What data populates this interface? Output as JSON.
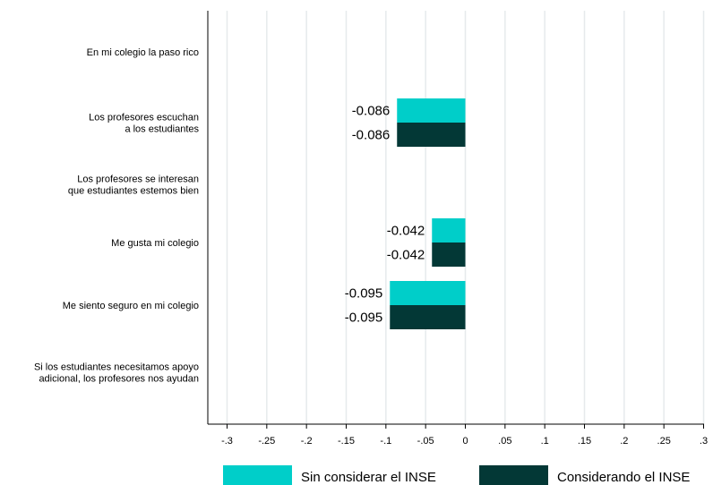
{
  "chart_data": {
    "type": "bar",
    "orientation": "horizontal",
    "categories": [
      [
        "En mi colegio la paso rico"
      ],
      [
        "Los profesores escuchan",
        "a los estudiantes"
      ],
      [
        "Los profesores se interesan",
        "que estudiantes estemos bien"
      ],
      [
        "Me gusta mi colegio"
      ],
      [
        "Me siento seguro en mi colegio"
      ],
      [
        "Si los estudiantes necesitamos apoyo",
        "adicional, los profesores nos ayudan"
      ]
    ],
    "series": [
      {
        "name": "Sin considerar el INSE",
        "color": "#00cec9",
        "values": [
          null,
          -0.086,
          null,
          -0.042,
          -0.095,
          null
        ],
        "labels": [
          null,
          "-0.086",
          null,
          "-0.042",
          "-0.095",
          null
        ]
      },
      {
        "name": "Considerando el INSE",
        "color": "#033836",
        "values": [
          null,
          -0.086,
          null,
          -0.042,
          -0.095,
          null
        ],
        "labels": [
          null,
          "-0.086",
          null,
          "-0.042",
          "-0.095",
          null
        ]
      }
    ],
    "xlim": [
      -0.3,
      0.3
    ],
    "xticks": [
      -0.3,
      -0.25,
      -0.2,
      -0.15,
      -0.1,
      -0.05,
      0,
      0.05,
      0.1,
      0.15,
      0.2,
      0.25,
      0.3
    ],
    "xtick_labels": [
      "-.3",
      "-.25",
      "-.2",
      "-.15",
      "-.1",
      "-.05",
      "0",
      ".05",
      ".1",
      ".15",
      ".2",
      ".25",
      ".3"
    ],
    "grid": "vertical",
    "legend_position": "bottom",
    "title": "",
    "xlabel": "",
    "ylabel": ""
  }
}
